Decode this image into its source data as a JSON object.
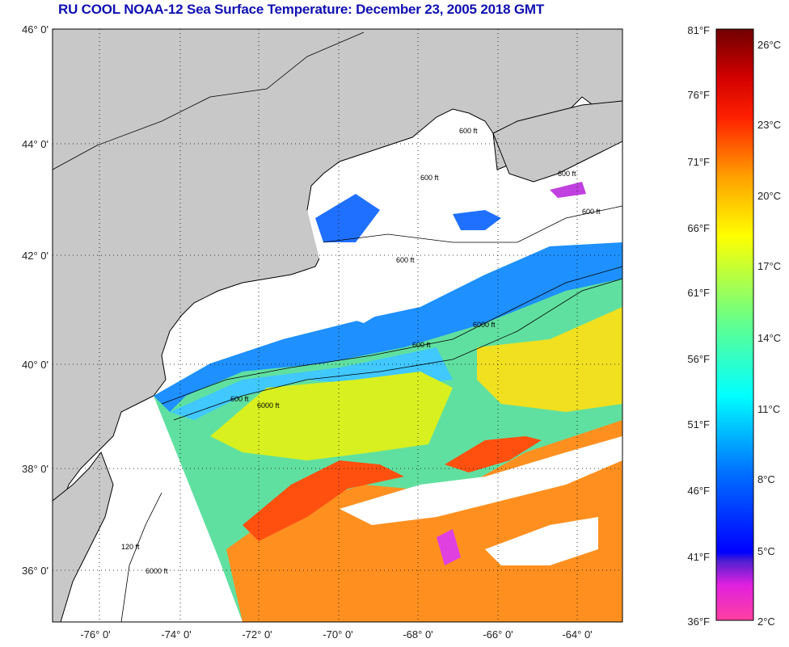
{
  "title": "RU COOL  NOAA-12  Sea Surface Temperature:  December 23, 2005 2018 GMT",
  "map": {
    "lat_labels": [
      "46° 0'",
      "44° 0'",
      "42° 0'",
      "40° 0'",
      "38° 0'",
      "36° 0'"
    ],
    "lon_labels": [
      "-76° 0'",
      "-74° 0'",
      "-72° 0'",
      "-70° 0'",
      "-68° 0'",
      "-66° 0'",
      "-64° 0'"
    ],
    "contour_labels": [
      "600 ft",
      "600 ft",
      "600 ft",
      "600 ft",
      "600 ft",
      "6000 ft",
      "600 ft",
      "6000 ft",
      "600 ft",
      "120 ft",
      "6000 ft"
    ],
    "colors": {
      "land": "#c8c8c8",
      "no_data": "#ffffff",
      "grid": "#000000"
    }
  },
  "colorbar": {
    "fahrenheit_labels": [
      "81°F",
      "76°F",
      "71°F",
      "66°F",
      "61°F",
      "56°F",
      "51°F",
      "46°F",
      "41°F",
      "36°F"
    ],
    "celsius_labels": [
      "26°C",
      "23°C",
      "20°C",
      "17°C",
      "14°C",
      "11°C",
      "8°C",
      "5°C",
      "2°C"
    ],
    "range_f": [
      36,
      81
    ],
    "range_c": [
      2,
      27
    ]
  },
  "colors": {
    "title": "#1010b0"
  }
}
